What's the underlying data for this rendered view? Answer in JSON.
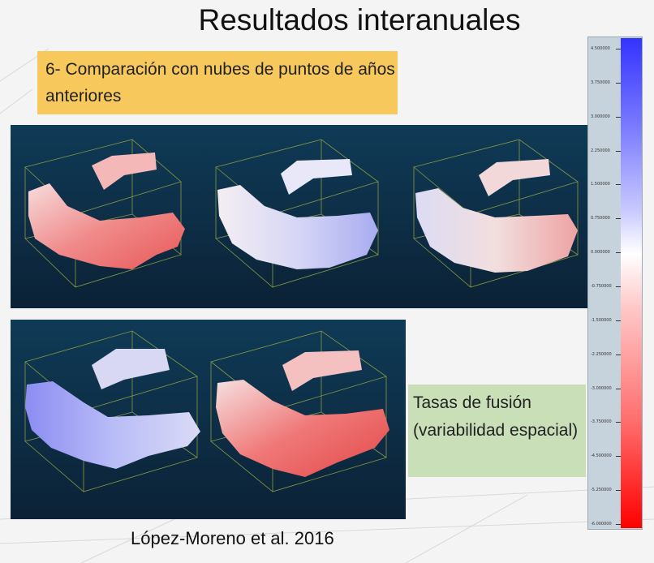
{
  "title": "Resultados interanuales",
  "box_heading_line1": "6- Comparación con nubes de puntos de años",
  "box_heading_line2": "anteriores",
  "side_note_line1": "Tasas de fusión",
  "side_note_line2": "(variabilidad espacial)",
  "citation": "López-Moreno et al. 2016",
  "colorbar": {
    "min_color": "#ff0000",
    "mid_color": "#ffffff",
    "max_color": "#3333ff",
    "labels": [
      "4.500000",
      "3.750000",
      "3.000000",
      "2.250000",
      "1.500000",
      "0.750000",
      "0.000000",
      "-0.750000",
      "-1.500000",
      "-2.250000",
      "-3.000000",
      "-3.750000",
      "-4.500000",
      "-5.250000",
      "-6.000000"
    ]
  },
  "panels": [
    {
      "tone": "red"
    },
    {
      "tone": "mixed-blue"
    },
    {
      "tone": "mixed-red"
    },
    {
      "tone": "blue"
    },
    {
      "tone": "strong-red"
    }
  ]
}
